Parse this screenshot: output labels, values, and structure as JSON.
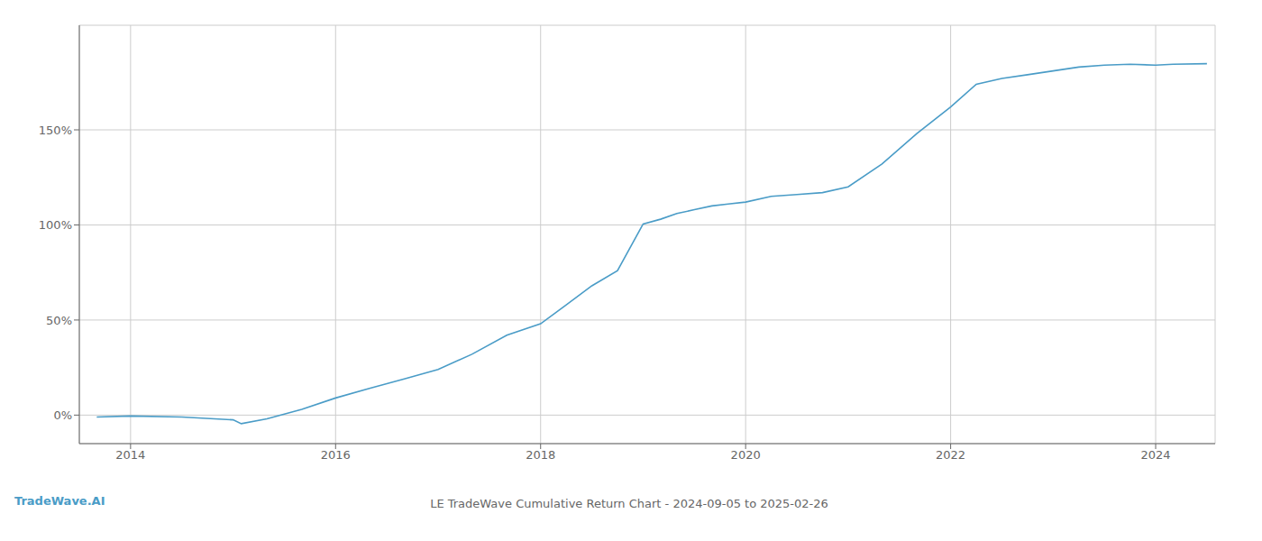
{
  "chart_data": {
    "type": "line",
    "title": "LE TradeWave Cumulative Return Chart - 2024-09-05 to 2025-02-26",
    "annotations": [
      {
        "text": "TradeWave.AI",
        "color": "#4a9cc7"
      }
    ],
    "x": [
      2013.67,
      2014.0,
      2014.5,
      2015.0,
      2015.08,
      2015.33,
      2015.67,
      2016.0,
      2016.33,
      2016.67,
      2017.0,
      2017.33,
      2017.67,
      2018.0,
      2018.25,
      2018.5,
      2018.75,
      2019.0,
      2019.17,
      2019.33,
      2019.5,
      2019.67,
      2019.83,
      2020.0,
      2020.25,
      2020.5,
      2020.75,
      2021.0,
      2021.33,
      2021.67,
      2022.0,
      2022.25,
      2022.5,
      2022.75,
      2023.0,
      2023.25,
      2023.5,
      2023.75,
      2024.0,
      2024.17,
      2024.5
    ],
    "values": [
      -1.0,
      -0.5,
      -1.0,
      -2.5,
      -4.5,
      -2.0,
      3.0,
      9.0,
      14.0,
      19.0,
      24.0,
      32.0,
      42.0,
      48.0,
      58.0,
      68.0,
      76.0,
      100.5,
      103.0,
      106.0,
      108.0,
      110.0,
      111.0,
      112.0,
      115.0,
      116.0,
      117.0,
      120.0,
      132.0,
      148.0,
      162.0,
      174.0,
      177.0,
      179.0,
      181.0,
      183.0,
      184.0,
      184.5,
      184.0,
      184.5,
      184.8
    ],
    "color": "#4a9cc7",
    "xlim": [
      2013.5,
      2024.58
    ],
    "ylim": [
      -15,
      205
    ],
    "xticks": [
      2014,
      2016,
      2018,
      2020,
      2022,
      2024
    ],
    "yticks": [
      {
        "value": 0,
        "label": "0%"
      },
      {
        "value": 50,
        "label": "50%"
      },
      {
        "value": 100,
        "label": "100%"
      },
      {
        "value": 150,
        "label": "150%"
      }
    ],
    "grid": true
  }
}
